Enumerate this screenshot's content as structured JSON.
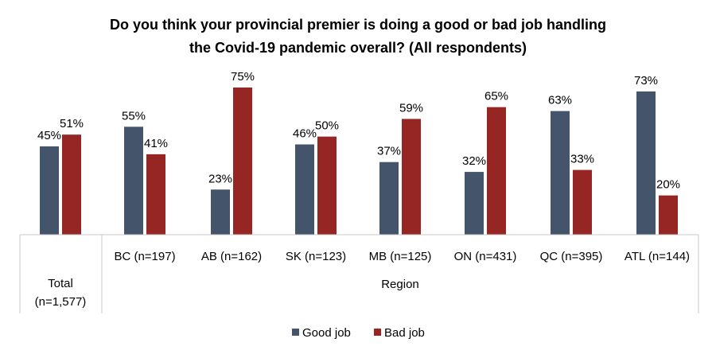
{
  "chart_data": {
    "type": "bar",
    "title_lines": [
      "Do you think your provincial premier is doing a good or bad job handling",
      "the Covid-19 pandemic overall? (All respondents)"
    ],
    "categories": [
      "Total (n=1,577)",
      "BC (n=197)",
      "AB (n=162)",
      "SK (n=123)",
      "MB (n=125)",
      "ON (n=431)",
      "QC (n=395)",
      "ATL (n=144)"
    ],
    "total_label_lines": [
      "Total",
      "(n=1,577)"
    ],
    "group_label": "Region",
    "series": [
      {
        "name": "Good job",
        "color": "#44546a",
        "values": [
          45,
          55,
          23,
          46,
          37,
          32,
          63,
          73
        ],
        "labels": [
          "45%",
          "55%",
          "23%",
          "46%",
          "37%",
          "32%",
          "63%",
          "73%"
        ]
      },
      {
        "name": "Bad job",
        "color": "#952623",
        "values": [
          51,
          41,
          75,
          50,
          59,
          65,
          33,
          20
        ],
        "labels": [
          "51%",
          "41%",
          "75%",
          "50%",
          "59%",
          "65%",
          "33%",
          "20%"
        ]
      }
    ],
    "ylim": [
      0,
      75
    ],
    "grid": false,
    "legend_position": "bottom"
  }
}
